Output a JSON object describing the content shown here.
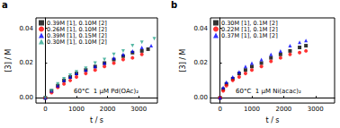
{
  "chart_data": [
    {
      "type": "scatter",
      "title": "a",
      "annotation": "60°C  1 μM Pd(OAc)₂",
      "x_label": "t / s",
      "y_label": "[3] / M",
      "xlim": [
        -300,
        3600
      ],
      "xticks": [
        0,
        1000,
        2000,
        3000
      ],
      "ylim": [
        -0.003,
        0.046
      ],
      "yticks": [
        {
          "value": 0,
          "label": "0.00"
        },
        {
          "value": 0.02,
          "label": "0.02"
        },
        {
          "value": 0.04,
          "label": "0.04"
        }
      ],
      "legend": "upper left",
      "series": [
        {
          "name": "0.39M [1], 0.10M [2]",
          "color": "#000000",
          "marker": "square",
          "x": [
            0,
            200,
            400,
            600,
            800,
            1000,
            1300,
            1600,
            1900,
            2200,
            2500,
            2800,
            3100,
            3300
          ],
          "values": [
            0,
            0.004,
            0.007,
            0.01,
            0.012,
            0.014,
            0.016,
            0.018,
            0.02,
            0.022,
            0.024,
            0.026,
            0.027,
            0.028
          ]
        },
        {
          "name": "0.26M [1], 0.10M [2]",
          "color": "#ff0000",
          "marker": "circle",
          "x": [
            0,
            200,
            400,
            600,
            800,
            1000,
            1300,
            1600,
            1900,
            2200,
            2500,
            2800,
            3100
          ],
          "values": [
            0,
            0.003,
            0.006,
            0.008,
            0.01,
            0.012,
            0.014,
            0.016,
            0.018,
            0.02,
            0.022,
            0.023,
            0.025
          ]
        },
        {
          "name": "0.39M [1], 0.15M [2]",
          "color": "#0000ff",
          "marker": "triangle",
          "x": [
            0,
            200,
            400,
            600,
            800,
            1000,
            1300,
            1600,
            1900,
            2200,
            2500,
            2800,
            3100,
            3400
          ],
          "values": [
            0,
            0.004,
            0.007,
            0.01,
            0.012,
            0.014,
            0.016,
            0.018,
            0.02,
            0.023,
            0.025,
            0.027,
            0.029,
            0.03
          ]
        },
        {
          "name": "0.30M [1], 0.10M [2]",
          "color": "#2ca58d",
          "marker": "down-triangle",
          "x": [
            0,
            200,
            400,
            600,
            800,
            1000,
            1300,
            1600,
            1900,
            2200,
            2500,
            2800,
            3100,
            3500
          ],
          "values": [
            0,
            0.004,
            0.008,
            0.011,
            0.013,
            0.015,
            0.017,
            0.02,
            0.022,
            0.025,
            0.027,
            0.03,
            0.032,
            0.034
          ]
        }
      ]
    },
    {
      "type": "scatter",
      "title": "b",
      "annotation": "60°C  1 μM Ni(acac)₂",
      "x_label": "t / s",
      "y_label": "[3] / M",
      "xlim": [
        -300,
        3600
      ],
      "xticks": [
        0,
        1000,
        2000,
        3000
      ],
      "ylim": [
        -0.003,
        0.046
      ],
      "yticks": [
        {
          "value": 0,
          "label": "0.00"
        },
        {
          "value": 0.02,
          "label": "0.02"
        },
        {
          "value": 0.04,
          "label": "0.04"
        }
      ],
      "legend": "upper left",
      "series": [
        {
          "name": "0.30M [1], 0.1M [2]",
          "color": "#000000",
          "marker": "square",
          "x": [
            0,
            100,
            200,
            400,
            600,
            800,
            1000,
            1300,
            1600,
            1900,
            2200,
            2500,
            2700
          ],
          "values": [
            0,
            0.005,
            0.008,
            0.011,
            0.014,
            0.016,
            0.018,
            0.02,
            0.023,
            0.025,
            0.027,
            0.029,
            0.03
          ]
        },
        {
          "name": "0.22M [1], 0.1M [2]",
          "color": "#ff0000",
          "marker": "circle",
          "x": [
            0,
            100,
            200,
            400,
            600,
            800,
            1000,
            1300,
            1600,
            1900,
            2200,
            2500,
            2700
          ],
          "values": [
            0,
            0.004,
            0.007,
            0.01,
            0.012,
            0.014,
            0.016,
            0.018,
            0.021,
            0.023,
            0.025,
            0.026,
            0.027
          ]
        },
        {
          "name": "0.37M [1], 0.1M [2]",
          "color": "#0000ff",
          "marker": "triangle",
          "x": [
            0,
            100,
            200,
            400,
            600,
            800,
            1000,
            1300,
            1600,
            1900,
            2200,
            2500,
            2700
          ],
          "values": [
            0,
            0.006,
            0.009,
            0.012,
            0.015,
            0.018,
            0.02,
            0.022,
            0.025,
            0.027,
            0.03,
            0.032,
            0.033
          ]
        }
      ]
    }
  ]
}
